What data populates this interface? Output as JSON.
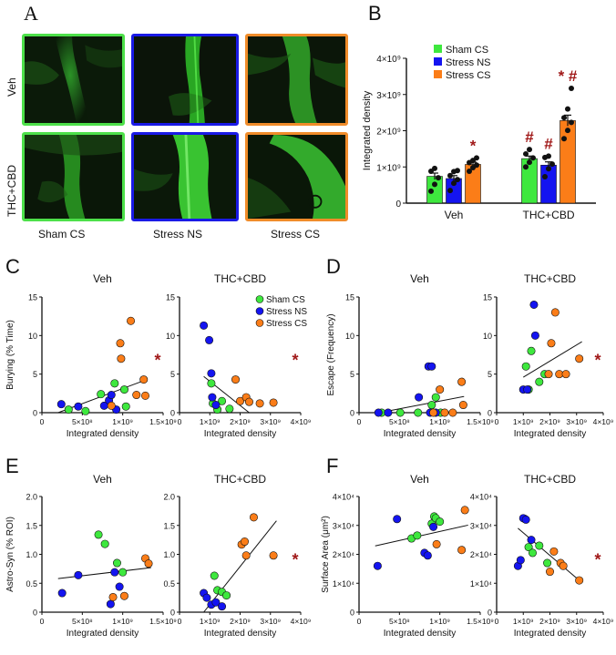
{
  "panelA": {
    "letter": "A",
    "rows": [
      "Veh",
      "THC+CBD"
    ],
    "cols": [
      "Sham CS",
      "Stress NS",
      "Stress CS"
    ],
    "colors": {
      "Sham CS": "#4de04a",
      "Stress NS": "#1a1ae6",
      "Stress CS": "#f08c2a"
    }
  },
  "chart_data": [
    {
      "id": "B",
      "letter": "B",
      "type": "bar",
      "ylabel": "Integrated density",
      "yticks": [
        "0",
        "1×10⁹",
        "2×10⁹",
        "3×10⁹",
        "4×10⁹"
      ],
      "ylim": [
        0,
        4000000000
      ],
      "categories": [
        "Veh",
        "THC+CBD"
      ],
      "series": [
        {
          "name": "Sham CS",
          "color": "#3ee83e",
          "values": [
            740000000,
            1230000000
          ],
          "sem": [
            90000000,
            70000000
          ],
          "points": [
            [
              330000000,
              520000000,
              700000000,
              880000000,
              960000000
            ],
            [
              1000000000,
              1130000000,
              1250000000,
              1360000000,
              1480000000
            ]
          ]
        },
        {
          "name": "Stress NS",
          "color": "#1414f0",
          "values": [
            680000000,
            1050000000
          ],
          "sem": [
            80000000,
            90000000
          ],
          "points": [
            [
              350000000,
              550000000,
              650000000,
              760000000,
              870000000,
              900000000
            ],
            [
              730000000,
              950000000,
              1080000000,
              1260000000,
              1300000000
            ]
          ]
        },
        {
          "name": "Stress CS",
          "color": "#fb7d18",
          "values": [
            1070000000,
            2280000000
          ],
          "sem": [
            60000000,
            150000000
          ],
          "points": [
            [
              880000000,
              980000000,
              1050000000,
              1120000000,
              1180000000,
              1250000000
            ],
            [
              1780000000,
              2010000000,
              2230000000,
              2360000000,
              2600000000,
              3170000000
            ]
          ]
        }
      ],
      "annotations": [
        {
          "cat": 0,
          "series": 2,
          "text": "*"
        },
        {
          "cat": 1,
          "series": 0,
          "text": "#"
        },
        {
          "cat": 1,
          "series": 1,
          "text": "#"
        },
        {
          "cat": 1,
          "series": 2,
          "text": "* #"
        }
      ]
    },
    {
      "id": "C1",
      "letter": "C",
      "type": "scatter",
      "title": "Veh",
      "xlabel": "Integrated density",
      "ylabel": "Burying (% Time)",
      "xlim": [
        0,
        1500000000
      ],
      "xticks": [
        "0",
        "5×10⁸",
        "1×10⁹",
        "1.5×10⁹"
      ],
      "xtick_values": [
        0,
        500000000,
        1000000000,
        1500000000
      ],
      "ylim": [
        0,
        15
      ],
      "yticks": [
        "0",
        "5",
        "10",
        "15"
      ],
      "ytick_values": [
        0,
        5,
        10,
        15
      ],
      "fit": [
        [
          200000000,
          0.0
        ],
        [
          1300000000,
          4.3
        ]
      ],
      "star": "*",
      "points": {
        "Sham CS": [
          [
            330000000,
            0.4
          ],
          [
            540000000,
            0.2
          ],
          [
            730000000,
            2.4
          ],
          [
            900000000,
            3.8
          ],
          [
            1020000000,
            3.0
          ],
          [
            1040000000,
            0.8
          ]
        ],
        "Stress NS": [
          [
            240000000,
            1.1
          ],
          [
            450000000,
            0.8
          ],
          [
            770000000,
            0.9
          ],
          [
            830000000,
            1.6
          ],
          [
            860000000,
            2.3
          ],
          [
            920000000,
            0.4
          ]
        ],
        "Stress CS": [
          [
            860000000,
            0.9
          ],
          [
            970000000,
            9.0
          ],
          [
            980000000,
            7.0
          ],
          [
            1100000000,
            11.9
          ],
          [
            1170000000,
            2.3
          ],
          [
            1260000000,
            4.3
          ],
          [
            1280000000,
            2.2
          ]
        ]
      }
    },
    {
      "id": "C2",
      "letter": "",
      "type": "scatter",
      "title": "THC+CBD",
      "xlabel": "Integrated density",
      "ylabel": "",
      "xlim": [
        0,
        4000000000
      ],
      "xticks": [
        "0",
        "1×10⁹",
        "2×10⁹",
        "3×10⁹",
        "4×10⁹"
      ],
      "xtick_values": [
        0,
        1000000000,
        2000000000,
        3000000000,
        4000000000
      ],
      "ylim": [
        0,
        15
      ],
      "yticks": [
        "0",
        "5",
        "10",
        "15"
      ],
      "ytick_values": [
        0,
        5,
        10,
        15
      ],
      "fit": [
        [
          800000000,
          4.7
        ],
        [
          2300000000,
          0.0
        ]
      ],
      "star": "*",
      "legend": [
        "Sham CS",
        "Stress NS",
        "Stress CS"
      ],
      "points": {
        "Sham CS": [
          [
            1050000000,
            3.8
          ],
          [
            1100000000,
            1.2
          ],
          [
            1250000000,
            0.4
          ],
          [
            1400000000,
            1.5
          ],
          [
            1650000000,
            0.5
          ]
        ],
        "Stress NS": [
          [
            800000000,
            11.3
          ],
          [
            980000000,
            9.4
          ],
          [
            1050000000,
            5.1
          ],
          [
            1080000000,
            2.0
          ],
          [
            1200000000,
            1.0
          ]
        ],
        "Stress CS": [
          [
            1850000000,
            4.3
          ],
          [
            2000000000,
            1.5
          ],
          [
            2200000000,
            2.0
          ],
          [
            2300000000,
            1.4
          ],
          [
            2650000000,
            1.2
          ],
          [
            3100000000,
            1.3
          ]
        ]
      }
    },
    {
      "id": "D1",
      "letter": "D",
      "type": "scatter",
      "title": "Veh",
      "xlabel": "Integrated density",
      "ylabel": "Escape (Frequency)",
      "xlim": [
        0,
        1500000000
      ],
      "xticks": [
        "0",
        "5×10⁸",
        "1×10⁹",
        "1.5×10⁹"
      ],
      "xtick_values": [
        0,
        500000000,
        1000000000,
        1500000000
      ],
      "ylim": [
        0,
        15
      ],
      "yticks": [
        "0",
        "5",
        "10",
        "15"
      ],
      "ytick_values": [
        0,
        5,
        10,
        15
      ],
      "fit": [
        [
          250000000,
          0.0
        ],
        [
          1300000000,
          2.1
        ]
      ],
      "points": {
        "Sham CS": [
          [
            280000000,
            0.0
          ],
          [
            510000000,
            0.0
          ],
          [
            730000000,
            0.0
          ],
          [
            900000000,
            1.0
          ],
          [
            950000000,
            2.0
          ],
          [
            1010000000,
            0.0
          ]
        ],
        "Stress NS": [
          [
            240000000,
            0.0
          ],
          [
            360000000,
            0.0
          ],
          [
            740000000,
            2.0
          ],
          [
            860000000,
            6.0
          ],
          [
            900000000,
            6.0
          ],
          [
            950000000,
            0.0
          ],
          [
            880000000,
            0.0
          ]
        ],
        "Stress CS": [
          [
            920000000,
            0.0
          ],
          [
            1000000000,
            3.0
          ],
          [
            1060000000,
            0.0
          ],
          [
            1160000000,
            0.0
          ],
          [
            1270000000,
            4.0
          ],
          [
            1290000000,
            1.0
          ]
        ]
      }
    },
    {
      "id": "D2",
      "letter": "",
      "type": "scatter",
      "title": "THC+CBD",
      "xlabel": "Integrated density",
      "ylabel": "",
      "xlim": [
        0,
        4000000000
      ],
      "xticks": [
        "0",
        "1×10⁹",
        "2×10⁹",
        "3×10⁹",
        "4×10⁹"
      ],
      "xtick_values": [
        0,
        1000000000,
        2000000000,
        3000000000,
        4000000000
      ],
      "ylim": [
        0,
        15
      ],
      "yticks": [
        "0",
        "5",
        "10",
        "15"
      ],
      "ytick_values": [
        0,
        5,
        10,
        15
      ],
      "fit": [
        [
          1000000000,
          4.6
        ],
        [
          3200000000,
          9.2
        ]
      ],
      "star": "*",
      "points": {
        "Sham CS": [
          [
            1100000000,
            6.0
          ],
          [
            1200000000,
            3.0
          ],
          [
            1300000000,
            8.0
          ],
          [
            1600000000,
            4.0
          ],
          [
            1800000000,
            5.0
          ]
        ],
        "Stress NS": [
          [
            1000000000,
            3.0
          ],
          [
            1150000000,
            3.0
          ],
          [
            1400000000,
            14.0
          ],
          [
            1450000000,
            10.0
          ]
        ],
        "Stress CS": [
          [
            1950000000,
            5.0
          ],
          [
            2050000000,
            9.0
          ],
          [
            2200000000,
            13.0
          ],
          [
            2350000000,
            5.0
          ],
          [
            2600000000,
            5.0
          ],
          [
            3100000000,
            7.0
          ]
        ]
      }
    },
    {
      "id": "E1",
      "letter": "E",
      "type": "scatter",
      "title": "Veh",
      "xlabel": "Integrated density",
      "ylabel": "Astro-Syn (% ROI)",
      "xlim": [
        0,
        1500000000
      ],
      "xticks": [
        "0",
        "5×10⁸",
        "1×10⁹",
        "1.5×10⁹"
      ],
      "xtick_values": [
        0,
        500000000,
        1000000000,
        1500000000
      ],
      "ylim": [
        0,
        2
      ],
      "yticks": [
        "0",
        "0.5",
        "1.0",
        "1.5",
        "2.0"
      ],
      "ytick_values": [
        0,
        0.5,
        1.0,
        1.5,
        2.0
      ],
      "fit": [
        [
          200000000,
          0.58
        ],
        [
          1350000000,
          0.77
        ]
      ],
      "points": {
        "Sham CS": [
          [
            700000000,
            1.34
          ],
          [
            780000000,
            1.18
          ],
          [
            930000000,
            0.85
          ],
          [
            1000000000,
            0.69
          ]
        ],
        "Stress NS": [
          [
            250000000,
            0.33
          ],
          [
            450000000,
            0.64
          ],
          [
            850000000,
            0.14
          ],
          [
            900000000,
            0.69
          ],
          [
            960000000,
            0.44
          ]
        ],
        "Stress CS": [
          [
            880000000,
            0.26
          ],
          [
            1020000000,
            0.28
          ],
          [
            1280000000,
            0.93
          ],
          [
            1320000000,
            0.84
          ]
        ]
      }
    },
    {
      "id": "E2",
      "letter": "",
      "type": "scatter",
      "title": "THC+CBD",
      "xlabel": "Integrated density",
      "ylabel": "",
      "xlim": [
        0,
        4000000000
      ],
      "xticks": [
        "0",
        "1×10⁹",
        "2×10⁹",
        "3×10⁹",
        "4×10⁹"
      ],
      "xtick_values": [
        0,
        1000000000,
        2000000000,
        3000000000,
        4000000000
      ],
      "ylim": [
        0,
        2
      ],
      "yticks": [
        "0",
        "0.5",
        "1.0",
        "1.5",
        "2.0"
      ],
      "ytick_values": [
        0,
        0.5,
        1.0,
        1.5,
        2.0
      ],
      "fit": [
        [
          800000000,
          0.0
        ],
        [
          3200000000,
          1.58
        ]
      ],
      "star": "*",
      "points": {
        "Sham CS": [
          [
            1150000000,
            0.63
          ],
          [
            1250000000,
            0.38
          ],
          [
            1400000000,
            0.35
          ],
          [
            1550000000,
            0.29
          ]
        ],
        "Stress NS": [
          [
            800000000,
            0.33
          ],
          [
            900000000,
            0.25
          ],
          [
            1050000000,
            0.13
          ],
          [
            1200000000,
            0.17
          ],
          [
            1400000000,
            0.1
          ]
        ],
        "Stress CS": [
          [
            2050000000,
            1.17
          ],
          [
            2150000000,
            1.22
          ],
          [
            2200000000,
            0.98
          ],
          [
            2450000000,
            1.64
          ],
          [
            3100000000,
            0.98
          ]
        ]
      }
    },
    {
      "id": "F1",
      "letter": "F",
      "type": "scatter",
      "title": "Veh",
      "xlabel": "Integrated density",
      "ylabel": "Surface Area (μm²)",
      "xlim": [
        0,
        1500000000
      ],
      "xticks": [
        "0",
        "5×10⁸",
        "1×10⁹",
        "1.5×10⁹"
      ],
      "xtick_values": [
        0,
        500000000,
        1000000000,
        1500000000
      ],
      "ylim": [
        0,
        40000
      ],
      "yticks": [
        "0",
        "1×10⁴",
        "2×10⁴",
        "3×10⁴",
        "4×10⁴"
      ],
      "ytick_values": [
        0,
        10000,
        20000,
        30000,
        40000
      ],
      "fit": [
        [
          200000000,
          22900
        ],
        [
          1350000000,
          30100
        ]
      ],
      "points": {
        "Sham CS": [
          [
            650000000,
            25500
          ],
          [
            720000000,
            26500
          ],
          [
            900000000,
            30600
          ],
          [
            930000000,
            33100
          ],
          [
            950000000,
            32500
          ],
          [
            1000000000,
            31300
          ]
        ],
        "Stress NS": [
          [
            230000000,
            16000
          ],
          [
            470000000,
            32200
          ],
          [
            810000000,
            20500
          ],
          [
            850000000,
            19600
          ],
          [
            920000000,
            29500
          ]
        ],
        "Stress CS": [
          [
            960000000,
            23500
          ],
          [
            1270000000,
            21500
          ],
          [
            1310000000,
            35300
          ]
        ]
      }
    },
    {
      "id": "F2",
      "letter": "",
      "type": "scatter",
      "title": "THC+CBD",
      "xlabel": "Integrated density",
      "ylabel": "",
      "xlim": [
        0,
        4000000000
      ],
      "xticks": [
        "0",
        "1×10⁹",
        "2×10⁹",
        "3×10⁹",
        "4×10⁹"
      ],
      "xtick_values": [
        0,
        1000000000,
        2000000000,
        3000000000,
        4000000000
      ],
      "ylim": [
        0,
        40000
      ],
      "yticks": [
        "0",
        "1×10⁴",
        "2×10⁴",
        "3×10⁴",
        "4×10⁴"
      ],
      "ytick_values": [
        0,
        10000,
        20000,
        30000,
        40000
      ],
      "fit": [
        [
          800000000,
          29000
        ],
        [
          3100000000,
          11000
        ]
      ],
      "star": "*",
      "points": {
        "Sham CS": [
          [
            1050000000,
            32300
          ],
          [
            1200000000,
            22500
          ],
          [
            1350000000,
            20500
          ],
          [
            1600000000,
            23000
          ],
          [
            1900000000,
            17000
          ]
        ],
        "Stress NS": [
          [
            800000000,
            16000
          ],
          [
            900000000,
            18000
          ],
          [
            1000000000,
            32500
          ],
          [
            1100000000,
            32000
          ],
          [
            1300000000,
            25000
          ]
        ],
        "Stress CS": [
          [
            2000000000,
            14000
          ],
          [
            2150000000,
            21000
          ],
          [
            2400000000,
            17000
          ],
          [
            2500000000,
            16000
          ],
          [
            3100000000,
            11000
          ]
        ]
      }
    }
  ]
}
